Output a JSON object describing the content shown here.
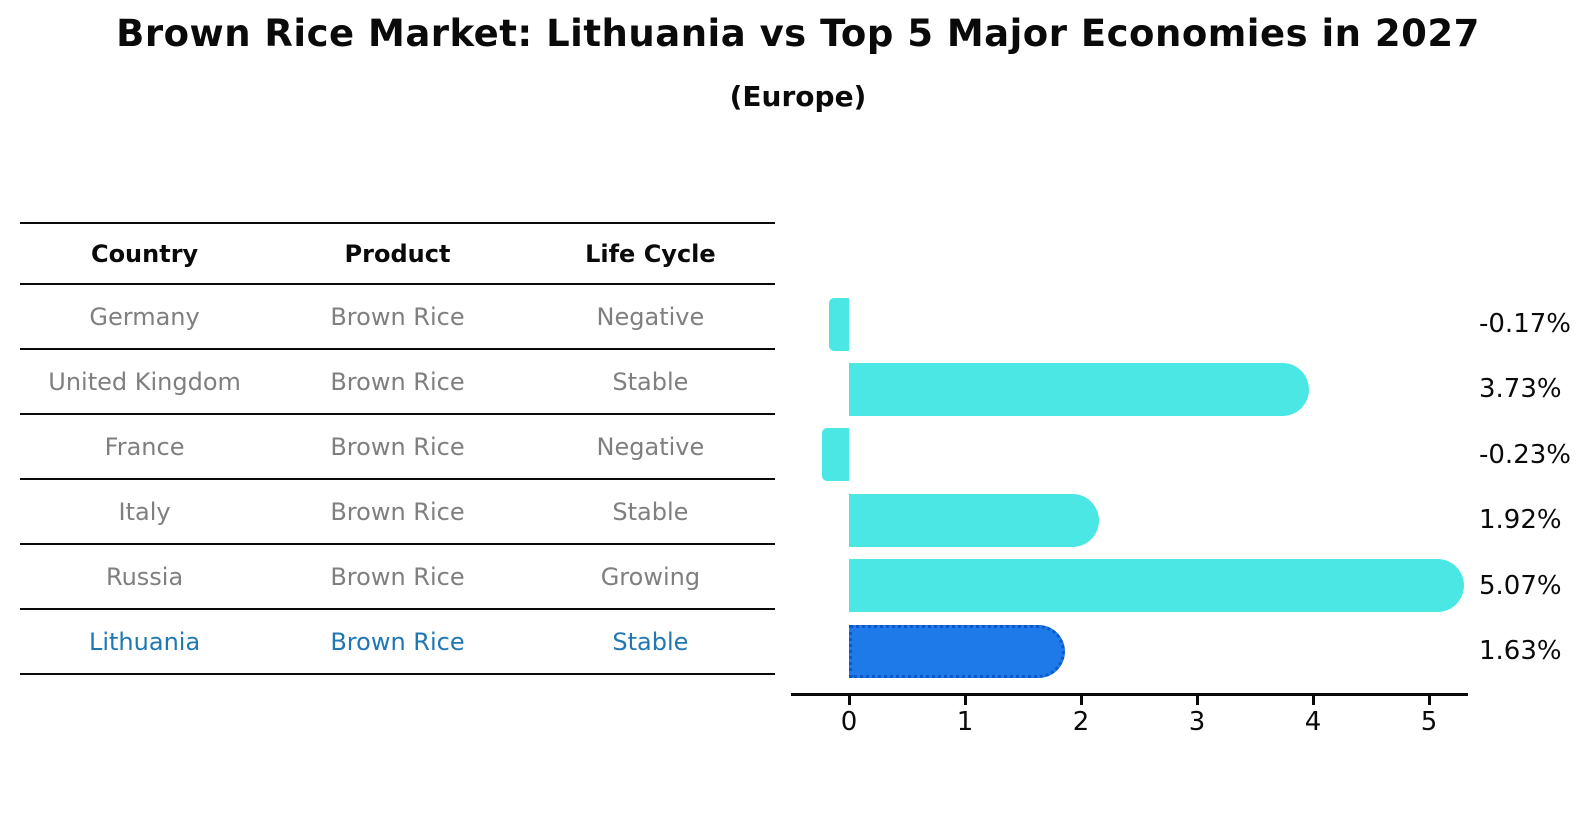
{
  "title": "Brown Rice Market: Lithuania vs Top 5 Major Economies in 2027",
  "subtitle": "(Europe)",
  "table": {
    "headers": [
      "Country",
      "Product",
      "Life Cycle"
    ],
    "rows": [
      {
        "country": "Germany",
        "product": "Brown Rice",
        "life_cycle": "Negative",
        "highlight": false
      },
      {
        "country": "United Kingdom",
        "product": "Brown Rice",
        "life_cycle": "Stable",
        "highlight": false
      },
      {
        "country": "France",
        "product": "Brown Rice",
        "life_cycle": "Negative",
        "highlight": false
      },
      {
        "country": "Italy",
        "product": "Brown Rice",
        "life_cycle": "Stable",
        "highlight": false
      },
      {
        "country": "Russia",
        "product": "Brown Rice",
        "life_cycle": "Growing",
        "highlight": false
      },
      {
        "country": "Lithuania",
        "product": "Brown Rice",
        "life_cycle": "Stable",
        "highlight": true
      }
    ]
  },
  "chart_data": {
    "type": "bar",
    "orientation": "horizontal",
    "title": "Brown Rice Market: Lithuania vs Top 5 Major Economies in 2027 (Europe)",
    "categories": [
      "Germany",
      "United Kingdom",
      "France",
      "Italy",
      "Russia",
      "Lithuania"
    ],
    "values": [
      -0.17,
      3.73,
      -0.23,
      1.92,
      5.07,
      1.63
    ],
    "value_labels": [
      "-0.17%",
      "3.73%",
      "-0.23%",
      "1.92%",
      "5.07%",
      "1.63%"
    ],
    "unit": "%",
    "xticks": [
      0,
      1,
      2,
      3,
      4,
      5
    ],
    "xlim": [
      -0.5,
      5.35
    ],
    "grid": false,
    "legend": false,
    "bar_color": "#4BE7E5",
    "highlight_bar_color": "#1E7AE8",
    "highlight_border_color": "#0B59C9",
    "highlight_index": 5,
    "highlight_text_color": "#1f77b4"
  }
}
